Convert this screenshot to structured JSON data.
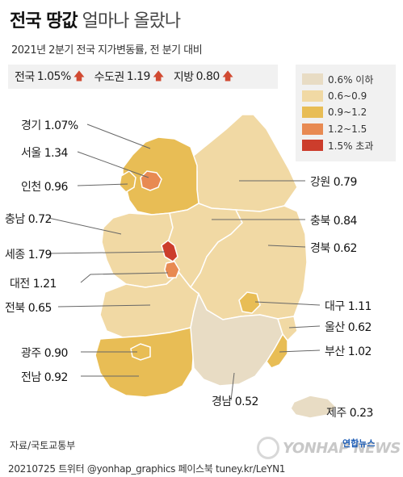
{
  "title_bold": "전국 땅값",
  "title_rest": "얼마나 올랐나",
  "subtitle": "2021년 2분기 전국 지가변동률, 전 분기 대비",
  "summary": [
    {
      "label": "전국",
      "value": "1.05%"
    },
    {
      "label": "수도권",
      "value": "1.19"
    },
    {
      "label": "지방",
      "value": "0.80"
    }
  ],
  "legend": [
    {
      "label": "0.6% 이하",
      "color": "#e8dcc4"
    },
    {
      "label": "0.6~0.9",
      "color": "#f1d9a4"
    },
    {
      "label": "0.9~1.2",
      "color": "#e8bd55"
    },
    {
      "label": "1.2~1.5",
      "color": "#e88a52"
    },
    {
      "label": "1.5% 초과",
      "color": "#cc3d2c"
    }
  ],
  "chart_data": {
    "type": "choropleth map",
    "unit": "%",
    "regions": [
      {
        "name": "경기",
        "value": 1.07,
        "label_value": "1.07%",
        "color": "#e8bd55"
      },
      {
        "name": "서울",
        "value": 1.34,
        "label_value": "1.34",
        "color": "#e88a52"
      },
      {
        "name": "인천",
        "value": 0.96,
        "label_value": "0.96",
        "color": "#e8bd55"
      },
      {
        "name": "강원",
        "value": 0.79,
        "label_value": "0.79",
        "color": "#f1d9a4"
      },
      {
        "name": "충남",
        "value": 0.72,
        "label_value": "0.72",
        "color": "#f1d9a4"
      },
      {
        "name": "충북",
        "value": 0.84,
        "label_value": "0.84",
        "color": "#f1d9a4"
      },
      {
        "name": "세종",
        "value": 1.79,
        "label_value": "1.79",
        "color": "#cc3d2c"
      },
      {
        "name": "대전",
        "value": 1.21,
        "label_value": "1.21",
        "color": "#e88a52"
      },
      {
        "name": "경북",
        "value": 0.62,
        "label_value": "0.62",
        "color": "#f1d9a4"
      },
      {
        "name": "전북",
        "value": 0.65,
        "label_value": "0.65",
        "color": "#f1d9a4"
      },
      {
        "name": "대구",
        "value": 1.11,
        "label_value": "1.11",
        "color": "#e8bd55"
      },
      {
        "name": "울산",
        "value": 0.62,
        "label_value": "0.62",
        "color": "#f1d9a4"
      },
      {
        "name": "광주",
        "value": 0.9,
        "label_value": "0.90",
        "color": "#e8bd55"
      },
      {
        "name": "부산",
        "value": 1.02,
        "label_value": "1.02",
        "color": "#e8bd55"
      },
      {
        "name": "전남",
        "value": 0.92,
        "label_value": "0.92",
        "color": "#e8bd55"
      },
      {
        "name": "경남",
        "value": 0.52,
        "label_value": "0.52",
        "color": "#e8dcc4"
      },
      {
        "name": "제주",
        "value": 0.23,
        "label_value": "0.23",
        "color": "#e8dcc4"
      }
    ]
  },
  "source": "자료/국토교통부",
  "footer": "20210725 트위터 @yonhap_graphics 페이스북 tuney.kr/LeYN1",
  "logo_text": "YONHAP NEWS",
  "logo_sub": "연합뉴스"
}
